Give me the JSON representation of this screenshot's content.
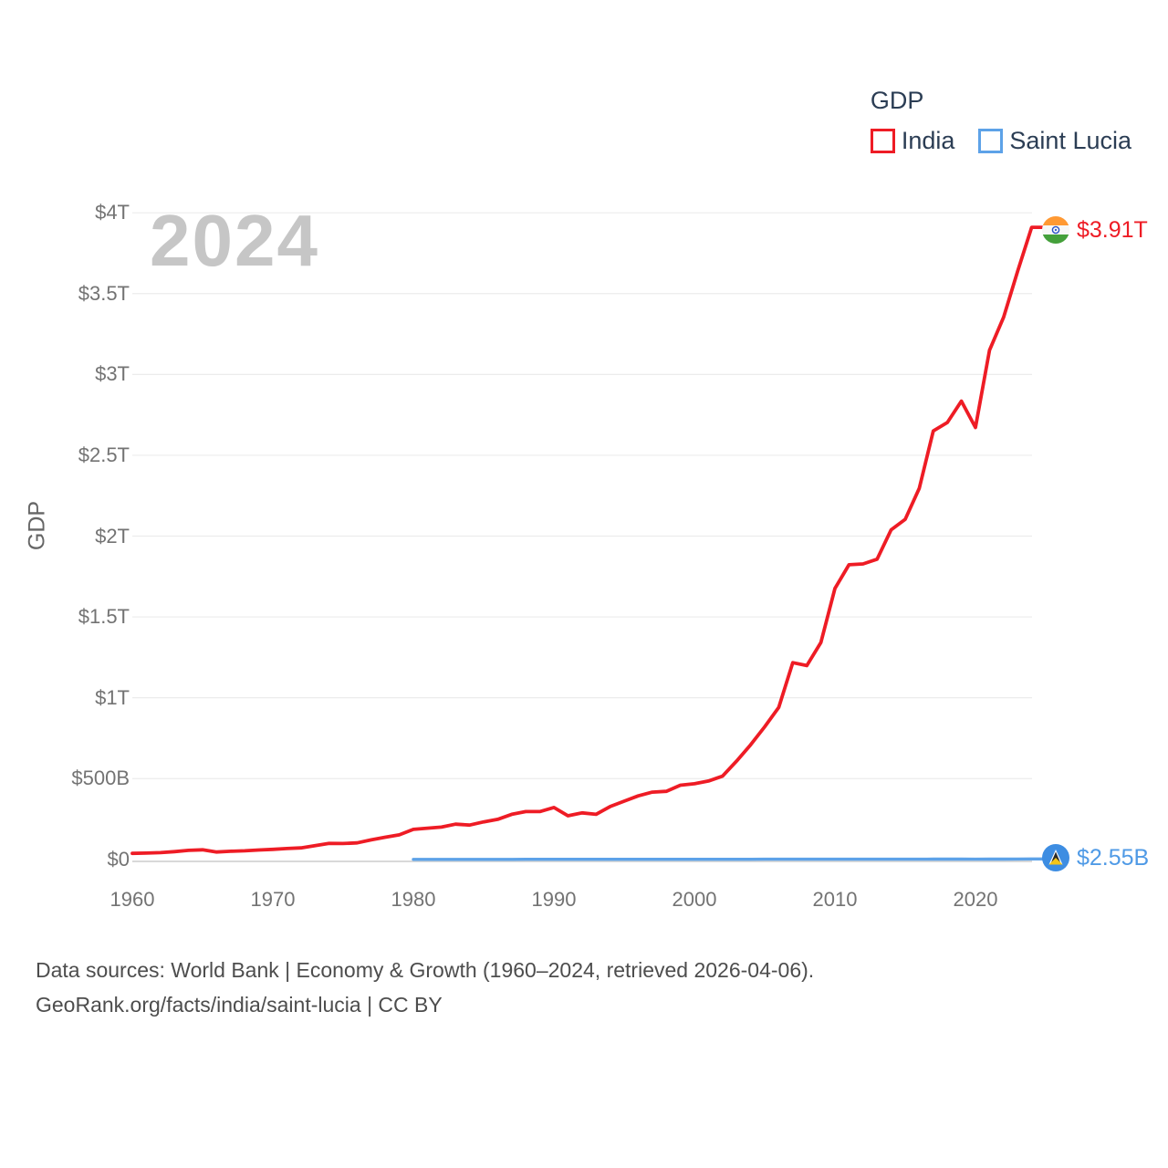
{
  "watermark": "2024",
  "legend": {
    "title": "GDP",
    "items": [
      {
        "label": "India",
        "color": "#ee1c25"
      },
      {
        "label": "Saint Lucia",
        "color": "#5da2e8"
      }
    ]
  },
  "end_labels": [
    {
      "series": "India",
      "label": "$3.91T",
      "color": "#ee1c25",
      "flag": "india-flag"
    },
    {
      "series": "Saint Lucia",
      "label": "$2.55B",
      "color": "#4f9ae6",
      "flag": "saint-lucia-flag"
    }
  ],
  "footer": {
    "line1": "Data sources: World Bank | Economy & Growth (1960–2024, retrieved 2026-04-06).",
    "line2": "GeoRank.org/facts/india/saint-lucia | CC BY"
  },
  "chart_data": {
    "type": "line",
    "title": "GDP",
    "ylabel": "GDP",
    "xlabel": "",
    "unit": "USD, T = trillions, B = billions",
    "xlim": [
      1960,
      2024
    ],
    "ylim": [
      0,
      4
    ],
    "grid": "horizontal",
    "legend_position": "top-right",
    "x_ticks": [
      1960,
      1970,
      1980,
      1990,
      2000,
      2010,
      2020
    ],
    "y_ticks": [
      {
        "value": 0,
        "label": "$0"
      },
      {
        "value": 0.5,
        "label": "$500B"
      },
      {
        "value": 1,
        "label": "$1T"
      },
      {
        "value": 1.5,
        "label": "$1.5T"
      },
      {
        "value": 2,
        "label": "$2T"
      },
      {
        "value": 2.5,
        "label": "$2.5T"
      },
      {
        "value": 3,
        "label": "$3T"
      },
      {
        "value": 3.5,
        "label": "$3.5T"
      },
      {
        "value": 4,
        "label": "$4T"
      }
    ],
    "series": [
      {
        "name": "India",
        "color": "#ee1c25",
        "start_year": 1960,
        "end_value_label": "$3.91T",
        "values_trillion_usd": [
          0.037,
          0.039,
          0.042,
          0.048,
          0.056,
          0.059,
          0.046,
          0.05,
          0.053,
          0.058,
          0.062,
          0.067,
          0.071,
          0.085,
          0.099,
          0.098,
          0.102,
          0.121,
          0.137,
          0.152,
          0.186,
          0.193,
          0.2,
          0.218,
          0.212,
          0.232,
          0.248,
          0.279,
          0.296,
          0.296,
          0.321,
          0.27,
          0.288,
          0.279,
          0.327,
          0.36,
          0.393,
          0.416,
          0.421,
          0.459,
          0.468,
          0.485,
          0.515,
          0.608,
          0.709,
          0.82,
          0.94,
          1.217,
          1.199,
          1.342,
          1.676,
          1.823,
          1.828,
          1.857,
          2.039,
          2.104,
          2.295,
          2.651,
          2.703,
          2.835,
          2.672,
          3.15,
          3.353,
          3.638,
          3.91
        ]
      },
      {
        "name": "Saint Lucia",
        "color": "#5da2e8",
        "start_year": 1980,
        "end_value_label": "$2.55B",
        "values_trillion_usd": [
          0.00013,
          0.00015,
          0.00016,
          0.00017,
          0.00019,
          0.00021,
          0.00024,
          0.00026,
          0.0003,
          0.00032,
          0.0004,
          0.00042,
          0.00045,
          0.00046,
          0.00048,
          0.00051,
          0.00052,
          0.00054,
          0.00058,
          0.00062,
          0.00072,
          0.00069,
          0.0007,
          0.00075,
          0.00081,
          0.00088,
          0.00098,
          0.00104,
          0.00107,
          0.001,
          0.0012,
          0.00124,
          0.00125,
          0.00127,
          0.00131,
          0.00136,
          0.00141,
          0.00147,
          0.00154,
          0.00159,
          0.00132,
          0.00156,
          0.00188,
          0.00225,
          0.00255
        ]
      }
    ]
  }
}
